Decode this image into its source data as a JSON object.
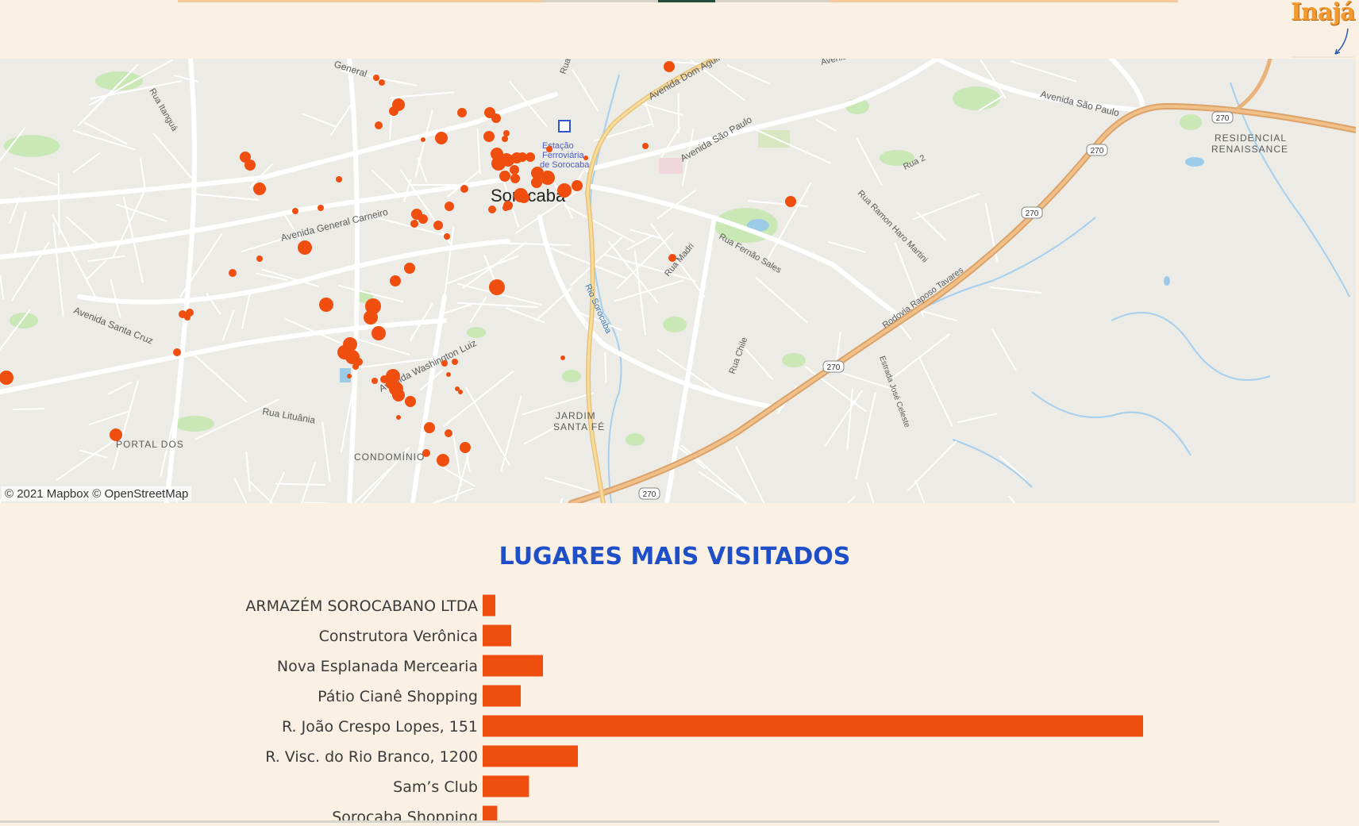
{
  "logo": {
    "text": "Inajá"
  },
  "map": {
    "attribution": "© 2021 Mapbox © OpenStreetMap",
    "city": "Sorocaba",
    "labels": {
      "station": [
        "Estação",
        "Ferroviária",
        "de Sorocaba"
      ],
      "avenida_general_carneiro": "Avenida General Carneiro",
      "general_top": "General",
      "rua_itanguá": "Rua Itanguá",
      "avenida_santa_cruz": "Avenida Santa Cruz",
      "rua_lituania": "Rua Lituânia",
      "avenida_washington_luiz": "Avenida Washington Luiz",
      "avenida_dom_aguirre": "Avenida Dom Aguirre",
      "avenida_sao_paulo_1": "Avenida São Paulo",
      "avenida_sao_paulo_2": "Avenida São Paulo",
      "avenida_top": "Avenida",
      "rua_2": "Rua 2",
      "rua_ramon_haro_martini": "Rua Ramon Haro Martini",
      "rua_fernao_sales": "Rua Fernão Sales",
      "rua_madri": "Rua Madri",
      "rua_chile": "Rua Chile",
      "rodovia_raposo_tavares": "Rodovia Raposo Tavares",
      "estrada_jose_celeste": "Estrada José Celeste",
      "rio_sorocaba": "Rio Sorocaba",
      "jardim_santa_fe": [
        "JARDIM",
        "SANTA FÉ"
      ],
      "residencial_renaissance": [
        "RESIDENCIAL",
        "RENAISSANCE"
      ],
      "portal_dos": "PORTAL DOS",
      "condominio": "CONDOMÍNIO",
      "rua_top": "Rua",
      "road_shield": "270"
    },
    "colors": {
      "dot": "#f04e0f",
      "land": "#ecebe6",
      "park": "#c5e6b0",
      "road": "#ffffff",
      "highway": "#e8b27a",
      "water": "#9ccbe8"
    }
  },
  "chart_data": {
    "type": "bar",
    "orientation": "horizontal",
    "title": "LUGARES MAIS VISITADOS",
    "categories": [
      "ARMAZÉM SOROCABANO LTDA",
      "Construtora Verônica",
      "Nova Esplanada Mercearia",
      "Pátio Cianê Shopping",
      "R. João Crespo Lopes, 151",
      "R. Visc. do Rio Branco, 1200",
      "Sam’s Club",
      "Sorocaba Shopping"
    ],
    "values": [
      2,
      4.5,
      9.5,
      6,
      104,
      15,
      7.3,
      2.3
    ],
    "color": "#f04e0f",
    "xlim": [
      0,
      104
    ]
  }
}
